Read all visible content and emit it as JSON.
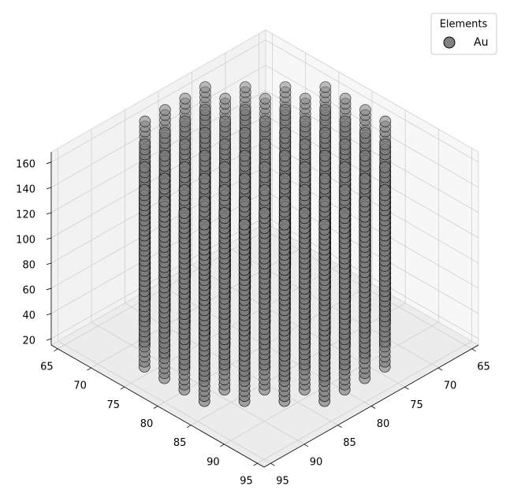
{
  "chart_data": {
    "type": "scatter3d",
    "legend_title": "Elements",
    "legend_loc": "upper right",
    "grid": true,
    "xlim": [
      64,
      96
    ],
    "ylim": [
      64,
      96
    ],
    "zlim": [
      15,
      168
    ],
    "xticks": [
      65,
      70,
      75,
      80,
      85,
      90,
      95
    ],
    "yticks": [
      65,
      70,
      75,
      80,
      85,
      90,
      95
    ],
    "zticks": [
      20,
      40,
      60,
      80,
      100,
      120,
      140,
      160
    ],
    "series": [
      {
        "name": "Au",
        "color": "#808080",
        "columns": [
          {
            "y": 66,
            "x": [
              75,
              78,
              81,
              84
            ]
          },
          {
            "y": 69,
            "x": [
              72,
              75,
              78,
              81,
              84,
              87
            ]
          },
          {
            "y": 72,
            "x": [
              69,
              72,
              75,
              78,
              81,
              84,
              87,
              90
            ]
          },
          {
            "y": 75,
            "x": [
              66,
              69,
              72,
              75,
              78,
              81,
              84,
              87,
              90,
              93
            ]
          },
          {
            "y": 78,
            "x": [
              66,
              69,
              72,
              75,
              78,
              81,
              84,
              87,
              90,
              93
            ]
          },
          {
            "y": 81,
            "x": [
              66,
              69,
              72,
              75,
              78,
              81,
              84,
              87,
              90,
              93
            ]
          },
          {
            "y": 84,
            "x": [
              66,
              69,
              72,
              75,
              78,
              81,
              84,
              87,
              90,
              93
            ]
          },
          {
            "y": 87,
            "x": [
              69,
              72,
              75,
              78,
              81,
              84,
              87,
              90
            ]
          },
          {
            "y": 90,
            "x": [
              72,
              75,
              78,
              81,
              84,
              87
            ]
          },
          {
            "y": 93,
            "x": [
              75,
              78,
              81,
              84
            ]
          }
        ],
        "z": [
          22,
          26,
          30,
          34,
          38,
          42,
          46,
          50,
          54,
          58,
          62,
          66,
          70,
          74,
          78,
          82,
          86,
          90,
          94,
          98,
          102,
          106,
          110,
          114,
          118,
          122,
          126,
          130,
          134,
          138,
          142,
          146,
          150,
          154,
          158,
          162
        ]
      }
    ]
  }
}
